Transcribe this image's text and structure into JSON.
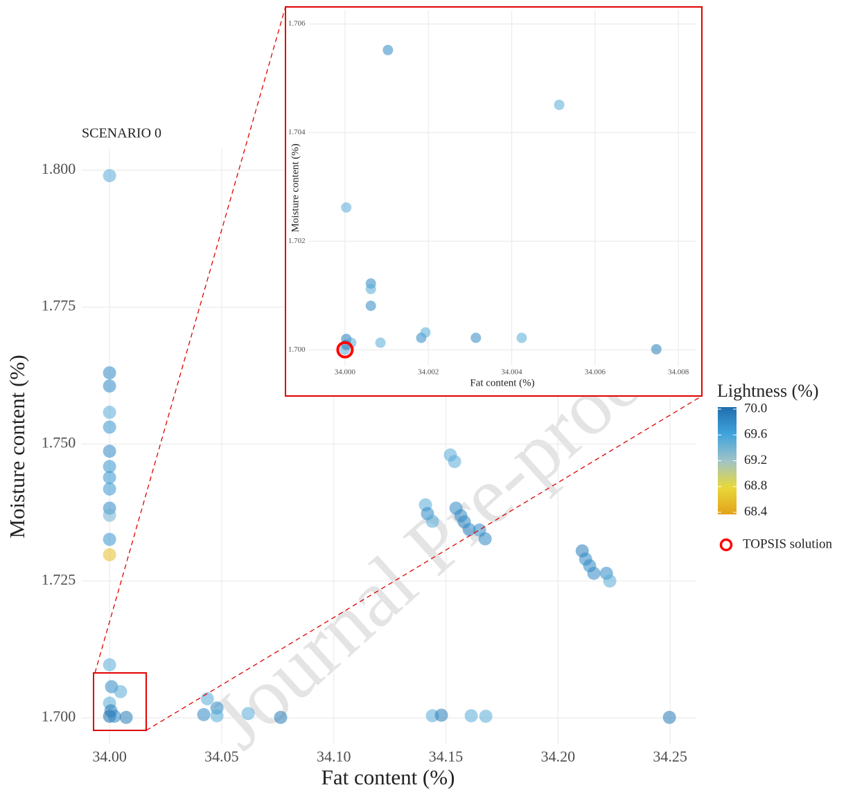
{
  "watermark": "Journal Pre-proof",
  "chart_data": [
    {
      "type": "scatter",
      "title": "SCENARIO 0",
      "x_label": "Fat content (%)",
      "y_label": "Moisture content (%)",
      "x": [
        34.0,
        34.0,
        34.0,
        34.0,
        34.0,
        34.0,
        34.0,
        34.0,
        34.0,
        34.0,
        34.0,
        34.0,
        34.0,
        34.0,
        34.0009,
        34.0049,
        34.0,
        34.0006,
        34.0,
        34.0022,
        34.0074,
        34.0436,
        34.042,
        34.0479,
        34.0479,
        34.0618,
        34.0763,
        34.144,
        34.148,
        34.1613,
        34.1678,
        34.152,
        34.1539,
        34.1409,
        34.1418,
        34.144,
        34.1545,
        34.1567,
        34.1582,
        34.1604,
        34.165,
        34.1675,
        34.2108,
        34.2123,
        34.2141,
        34.216,
        34.2216,
        34.2231,
        34.2497
      ],
      "y": [
        1.799,
        1.763,
        1.7606,
        1.7558,
        1.7531,
        1.7487,
        1.7459,
        1.7439,
        1.7418,
        1.7383,
        1.737,
        1.7326,
        1.7298,
        1.7097,
        1.7057,
        1.7048,
        1.7027,
        1.7013,
        1.7003,
        1.7003,
        1.7001,
        1.7035,
        1.7006,
        1.7018,
        1.7004,
        1.7008,
        1.7001,
        1.7004,
        1.7005,
        1.7004,
        1.7003,
        1.748,
        1.7468,
        1.7389,
        1.7373,
        1.7359,
        1.7383,
        1.7369,
        1.7358,
        1.7344,
        1.7343,
        1.7327,
        1.7305,
        1.729,
        1.7278,
        1.7264,
        1.7264,
        1.725,
        1.7001
      ],
      "lightness": [
        69.5,
        69.8,
        69.8,
        69.5,
        69.7,
        69.8,
        69.7,
        69.7,
        69.7,
        69.8,
        69.4,
        69.7,
        68.6,
        69.5,
        69.8,
        69.5,
        69.5,
        69.9,
        70.0,
        69.8,
        69.9,
        69.5,
        69.8,
        69.8,
        69.5,
        69.5,
        69.9,
        69.5,
        69.9,
        69.5,
        69.5,
        69.5,
        69.5,
        69.5,
        69.8,
        69.5,
        69.8,
        69.8,
        69.8,
        69.8,
        69.8,
        69.8,
        69.9,
        69.8,
        69.8,
        69.8,
        69.8,
        69.5,
        69.9
      ],
      "xlim": [
        33.9876,
        34.2617
      ],
      "ylim": [
        1.6952,
        1.8039
      ],
      "xticks": [
        {
          "value": 34.0,
          "label": "34.00"
        },
        {
          "value": 34.05,
          "label": "34.05"
        },
        {
          "value": 34.1,
          "label": "34.10"
        },
        {
          "value": 34.15,
          "label": "34.15"
        },
        {
          "value": 34.2,
          "label": "34.20"
        },
        {
          "value": 34.25,
          "label": "34.25"
        }
      ],
      "yticks": [
        {
          "value": 1.7,
          "label": "1.700"
        },
        {
          "value": 1.725,
          "label": "1.725"
        },
        {
          "value": 1.75,
          "label": "1.750"
        },
        {
          "value": 1.775,
          "label": "1.775"
        },
        {
          "value": 1.8,
          "label": "1.800"
        }
      ],
      "grid": true,
      "colorbar": {
        "title": "Lightness (%)",
        "lim": [
          68.4,
          70.0
        ],
        "ticks": [
          {
            "value": 70.0,
            "label": "70.0"
          },
          69.6,
          69.2,
          68.8,
          68.4
        ],
        "colors": [
          "#e3a21a",
          "#e8d83a",
          "#9fc3c8",
          "#3fa3dc",
          "#1f6eac"
        ]
      }
    },
    {
      "type": "scatter",
      "x_label": "Fat content (%)",
      "y_label": "Moisture content (%)",
      "x": [
        34.00103,
        34.00514,
        34.00003,
        34.00062,
        34.00062,
        34.00062,
        34.00183,
        34.00193,
        34.00314,
        34.00424,
        34.00085,
        34.00747,
        34.0,
        34.00003,
        34.00003,
        34.00015
      ],
      "y": [
        1.70552,
        1.70451,
        1.70262,
        1.70122,
        1.70112,
        1.70081,
        1.70022,
        1.70032,
        1.70022,
        1.70022,
        1.70013,
        1.70001,
        1.7,
        1.70009,
        1.7002,
        1.70013
      ],
      "lightness": [
        69.8,
        69.5,
        69.5,
        69.8,
        69.5,
        69.8,
        69.8,
        69.5,
        69.8,
        69.5,
        69.5,
        69.9,
        69.5,
        69.9,
        69.9,
        69.5
      ],
      "xlim": [
        33.99912,
        34.00843
      ],
      "ylim": [
        1.69971,
        1.70625
      ],
      "xticks": [
        {
          "value": 34.0,
          "label": "34.000"
        },
        {
          "value": 34.002,
          "label": "34.002"
        },
        {
          "value": 34.004,
          "label": "34.004"
        },
        {
          "value": 34.006,
          "label": "34.006"
        },
        {
          "value": 34.008,
          "label": "34.008"
        }
      ],
      "yticks": [
        {
          "value": 1.7,
          "label": "1.700"
        },
        1.702,
        1.704,
        1.706
      ],
      "grid": true,
      "highlight": {
        "name": "TOPSIS solution",
        "x": 34.0,
        "y": 1.7,
        "color": "#ff0000"
      }
    }
  ]
}
